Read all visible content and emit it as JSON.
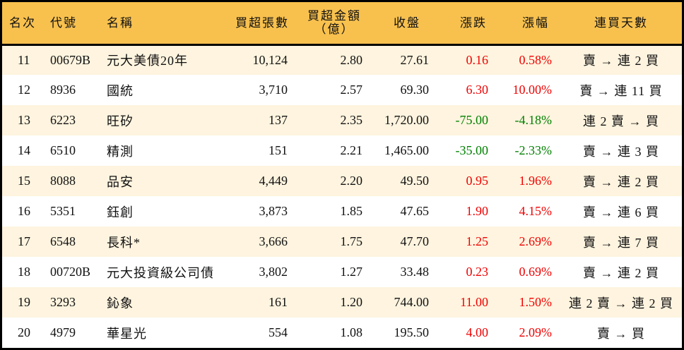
{
  "table": {
    "headers": {
      "rank": "名次",
      "code": "代號",
      "name": "名稱",
      "net_buy_lots": "買超張數",
      "net_buy_amount_line1": "買超金額",
      "net_buy_amount_line2": "（億）",
      "close": "收盤",
      "change": "漲跌",
      "change_pct": "漲幅",
      "consecutive_days": "連買天數"
    },
    "colors": {
      "header_bg": "#F8C14E",
      "row_alt_bg": "#FEF4DF",
      "up": "#F00000",
      "down": "#008000"
    },
    "rows": [
      {
        "rank": "11",
        "code": "00679B",
        "name": "元大美債20年",
        "lots": "10,124",
        "amount": "2.80",
        "close": "27.61",
        "change": "0.16",
        "pct": "0.58%",
        "days": "賣 → 連 2 買",
        "dir": "up"
      },
      {
        "rank": "12",
        "code": "8936",
        "name": "國統",
        "lots": "3,710",
        "amount": "2.57",
        "close": "69.30",
        "change": "6.30",
        "pct": "10.00%",
        "days": "賣 → 連 11 買",
        "dir": "up"
      },
      {
        "rank": "13",
        "code": "6223",
        "name": "旺矽",
        "lots": "137",
        "amount": "2.35",
        "close": "1,720.00",
        "change": "-75.00",
        "pct": "-4.18%",
        "days": "連 2 賣 → 買",
        "dir": "down"
      },
      {
        "rank": "14",
        "code": "6510",
        "name": "精測",
        "lots": "151",
        "amount": "2.21",
        "close": "1,465.00",
        "change": "-35.00",
        "pct": "-2.33%",
        "days": "賣 → 連 3 買",
        "dir": "down"
      },
      {
        "rank": "15",
        "code": "8088",
        "name": "品安",
        "lots": "4,449",
        "amount": "2.20",
        "close": "49.50",
        "change": "0.95",
        "pct": "1.96%",
        "days": "賣 → 連 2 買",
        "dir": "up"
      },
      {
        "rank": "16",
        "code": "5351",
        "name": "鈺創",
        "lots": "3,873",
        "amount": "1.85",
        "close": "47.65",
        "change": "1.90",
        "pct": "4.15%",
        "days": "賣 → 連 6 買",
        "dir": "up"
      },
      {
        "rank": "17",
        "code": "6548",
        "name": "長科*",
        "lots": "3,666",
        "amount": "1.75",
        "close": "47.70",
        "change": "1.25",
        "pct": "2.69%",
        "days": "賣 → 連 7 買",
        "dir": "up"
      },
      {
        "rank": "18",
        "code": "00720B",
        "name": "元大投資級公司債",
        "lots": "3,802",
        "amount": "1.27",
        "close": "33.48",
        "change": "0.23",
        "pct": "0.69%",
        "days": "賣 → 連 2 買",
        "dir": "up"
      },
      {
        "rank": "19",
        "code": "3293",
        "name": "鈊象",
        "lots": "161",
        "amount": "1.20",
        "close": "744.00",
        "change": "11.00",
        "pct": "1.50%",
        "days": "連 2 賣 → 連 2 買",
        "dir": "up"
      },
      {
        "rank": "20",
        "code": "4979",
        "name": "華星光",
        "lots": "554",
        "amount": "1.08",
        "close": "195.50",
        "change": "4.00",
        "pct": "2.09%",
        "days": "賣 → 買",
        "dir": "up"
      }
    ]
  }
}
